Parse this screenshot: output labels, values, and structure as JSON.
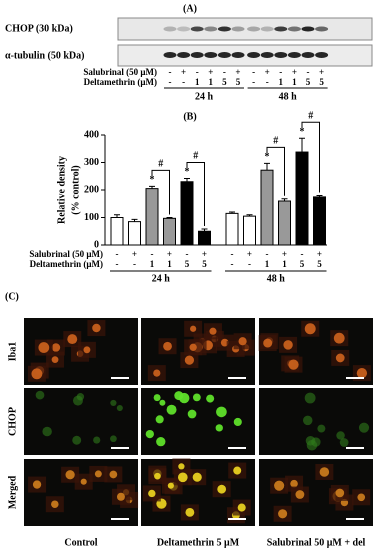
{
  "panel_a": {
    "label": "(A)",
    "blots": [
      "CHOP (30 kDa)",
      "α-tubulin (50 kDa)"
    ],
    "rows": [
      {
        "label": "Salubrinal (50 μM)",
        "symbols": [
          "-",
          "+",
          "-",
          "+",
          "-",
          "+"
        ]
      },
      {
        "label": "Deltamethrin (μM)",
        "symbols": [
          "-",
          "-",
          "1",
          "1",
          "5",
          "5"
        ]
      }
    ],
    "groups": [
      "24 h",
      "48 h"
    ]
  },
  "chart_data": {
    "type": "bar",
    "label": "(B)",
    "ylabel": [
      "Relative density",
      "(% control)"
    ],
    "groups": [
      "24 h",
      "48 h"
    ],
    "rows": [
      {
        "label": "Salubrinal (50 μM)",
        "symbols": [
          "-",
          "+",
          "-",
          "+",
          "-",
          "+"
        ]
      },
      {
        "label": "Deltamethrin (μM)",
        "symbols": [
          "-",
          "-",
          "1",
          "1",
          "5",
          "5"
        ]
      }
    ],
    "values": [
      100,
      85,
      205,
      97,
      230,
      50,
      115,
      105,
      272,
      160,
      338,
      175
    ],
    "errors": [
      10,
      8,
      8,
      3,
      12,
      8,
      5,
      5,
      25,
      8,
      50,
      5
    ],
    "colors": [
      "#ffffff",
      "#ffffff",
      "#999999",
      "#999999",
      "#000000",
      "#000000",
      "#ffffff",
      "#ffffff",
      "#999999",
      "#999999",
      "#000000",
      "#000000"
    ],
    "stars": [
      null,
      null,
      "*",
      null,
      "*",
      null,
      null,
      null,
      "*",
      null,
      "*",
      null
    ],
    "brackets": [
      {
        "from": 2,
        "to": 3,
        "label": "#"
      },
      {
        "from": 4,
        "to": 5,
        "label": "#"
      },
      {
        "from": 8,
        "to": 9,
        "label": "#"
      },
      {
        "from": 10,
        "to": 11,
        "label": "#"
      }
    ],
    "ylim": [
      0,
      400
    ],
    "yticks": [
      0,
      100,
      200,
      300,
      400
    ]
  },
  "panel_c": {
    "label": "(C)",
    "row_labels": [
      "Iba1",
      "CHOP",
      "Merged"
    ],
    "column_labels": [
      "Control",
      "Deltamethrin 5 μM",
      "Salubrinal 50 μM + del"
    ]
  }
}
